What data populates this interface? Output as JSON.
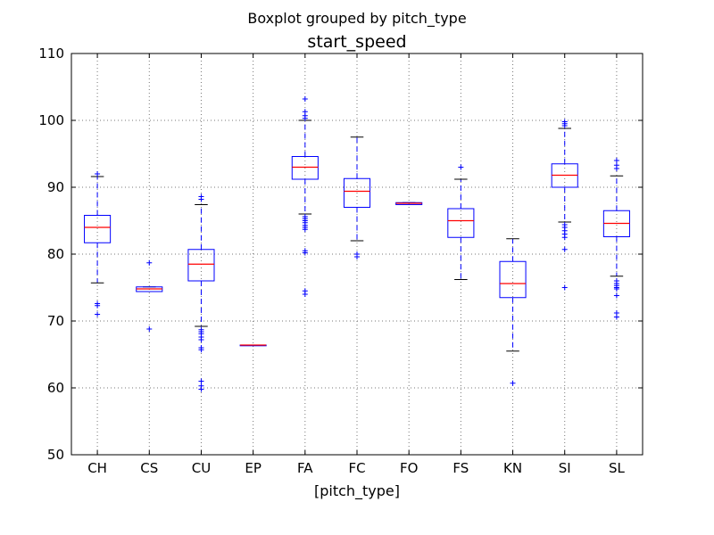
{
  "figure": {
    "suptitle": "Boxplot grouped by pitch_type"
  },
  "chart_data": {
    "type": "boxplot",
    "title": "start_speed",
    "xlabel": "[pitch_type]",
    "ylabel": "",
    "ylim": [
      50,
      110
    ],
    "yticks": [
      50,
      60,
      70,
      80,
      90,
      100,
      110
    ],
    "grid": true,
    "colors": {
      "box": "#0000ff",
      "median": "#ff0000",
      "whisker": "#0000ff",
      "cap": "#000000",
      "flier": "#0000ff",
      "grid": "#777777"
    },
    "categories": [
      "CH",
      "CS",
      "CU",
      "EP",
      "FA",
      "FC",
      "FO",
      "FS",
      "KN",
      "SI",
      "SL"
    ],
    "boxes": [
      {
        "q1": 81.7,
        "median": 84.0,
        "q3": 85.8,
        "whislo": 75.7,
        "whishi": 91.6,
        "fliers": [
          71.0,
          72.3,
          72.6,
          92.0
        ]
      },
      {
        "q1": 74.4,
        "median": 74.8,
        "q3": 75.1,
        "whislo": 74.4,
        "whishi": 75.1,
        "fliers": [
          68.8,
          78.7
        ]
      },
      {
        "q1": 76.0,
        "median": 78.5,
        "q3": 80.7,
        "whislo": 69.2,
        "whishi": 87.4,
        "fliers": [
          59.8,
          60.3,
          61.0,
          65.7,
          66.0,
          67.2,
          67.6,
          68.1,
          68.4,
          68.7,
          88.2,
          88.6
        ]
      },
      {
        "q1": 66.4,
        "median": 66.4,
        "q3": 66.4,
        "whislo": 66.4,
        "whishi": 66.4,
        "fliers": []
      },
      {
        "q1": 91.2,
        "median": 93.0,
        "q3": 94.6,
        "whislo": 86.0,
        "whishi": 100.0,
        "fliers": [
          74.0,
          74.5,
          80.2,
          80.5,
          83.7,
          84.0,
          84.3,
          84.7,
          85.0,
          85.3,
          85.6,
          100.3,
          100.7,
          101.3,
          103.2
        ]
      },
      {
        "q1": 87.0,
        "median": 89.4,
        "q3": 91.3,
        "whislo": 82.0,
        "whishi": 97.5,
        "fliers": [
          79.6,
          80.0
        ]
      },
      {
        "q1": 87.4,
        "median": 87.6,
        "q3": 87.7,
        "whislo": 87.4,
        "whishi": 87.7,
        "fliers": []
      },
      {
        "q1": 82.5,
        "median": 85.0,
        "q3": 86.8,
        "whislo": 76.2,
        "whishi": 91.2,
        "fliers": [
          93.0
        ]
      },
      {
        "q1": 73.5,
        "median": 75.6,
        "q3": 78.9,
        "whislo": 65.5,
        "whishi": 82.3,
        "fliers": [
          60.7
        ]
      },
      {
        "q1": 90.0,
        "median": 91.8,
        "q3": 93.5,
        "whislo": 84.8,
        "whishi": 98.8,
        "fliers": [
          75.0,
          80.7,
          82.5,
          83.0,
          83.5,
          84.0,
          84.4,
          99.2,
          99.5,
          99.8
        ]
      },
      {
        "q1": 82.6,
        "median": 84.6,
        "q3": 86.5,
        "whislo": 76.7,
        "whishi": 91.7,
        "fliers": [
          70.6,
          71.2,
          73.8,
          74.8,
          75.0,
          75.3,
          75.6,
          76.0,
          92.8,
          93.3,
          94.0
        ]
      }
    ]
  }
}
